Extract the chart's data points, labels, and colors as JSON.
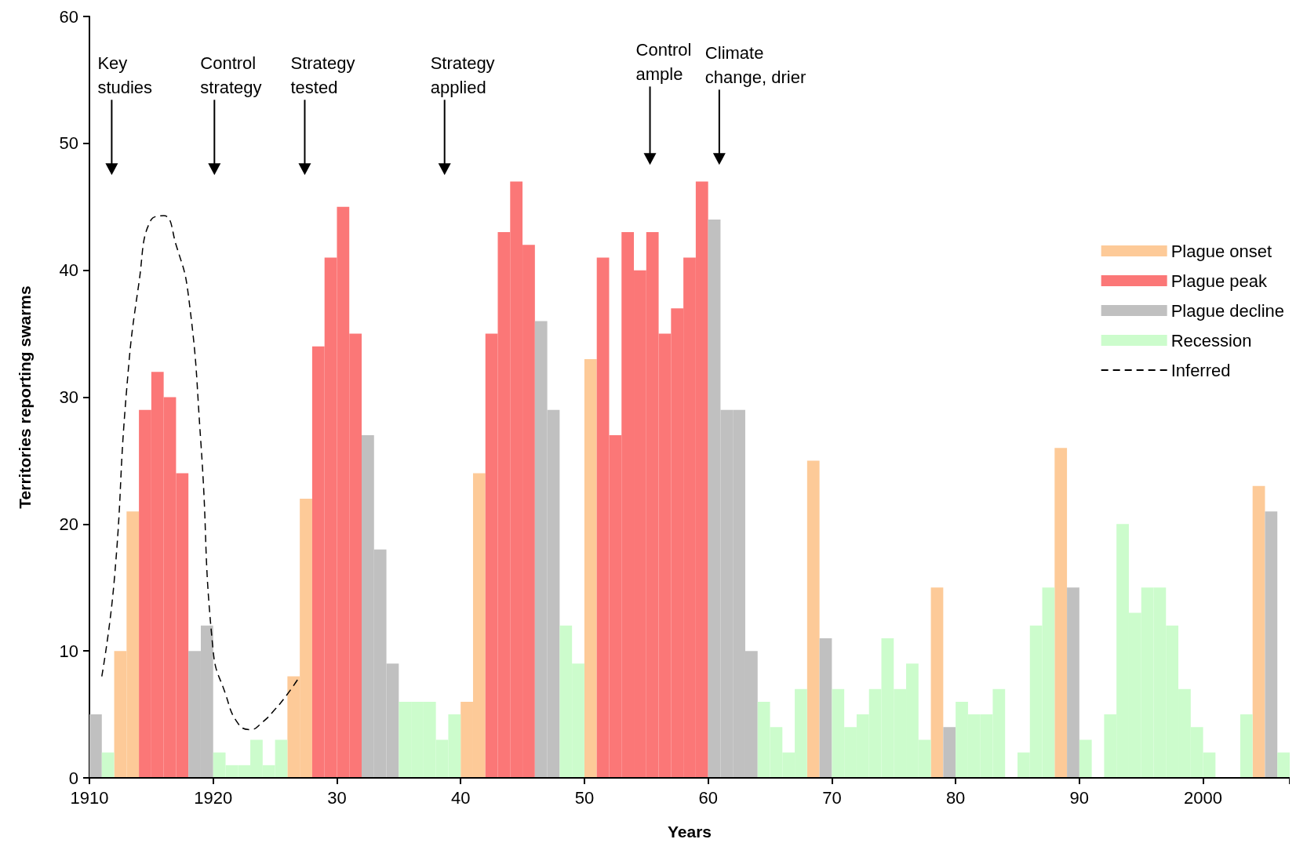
{
  "chart_data": {
    "type": "bar",
    "xlabel": "Years",
    "ylabel": "Territories reporting swarms",
    "categories": [
      "1910",
      null,
      null,
      null,
      null,
      null,
      null,
      null,
      null,
      null,
      "1920",
      null,
      null,
      null,
      null,
      null,
      null,
      null,
      null,
      null,
      "30",
      null,
      null,
      null,
      null,
      null,
      null,
      null,
      null,
      null,
      "40",
      null,
      null,
      null,
      null,
      null,
      null,
      null,
      null,
      null,
      "50",
      null,
      null,
      null,
      null,
      null,
      null,
      null,
      null,
      null,
      "60",
      null,
      null,
      null,
      null,
      null,
      null,
      null,
      null,
      null,
      "70",
      null,
      null,
      null,
      null,
      null,
      null,
      null,
      null,
      null,
      "80",
      null,
      null,
      null,
      null,
      null,
      null,
      null,
      null,
      null,
      "90",
      null,
      null,
      null,
      null,
      null,
      null,
      null,
      null,
      null,
      "2000",
      null,
      null,
      null,
      null,
      null,
      null
    ],
    "ylim": [
      0,
      60
    ],
    "yticks": [
      0,
      10,
      20,
      30,
      40,
      50,
      60
    ],
    "grid": false,
    "legend": "right",
    "series": [
      {
        "name": "Plague onset",
        "color": "#fdca98",
        "values": [
          null,
          null,
          10,
          21,
          null,
          null,
          null,
          null,
          null,
          null,
          null,
          null,
          null,
          null,
          null,
          null,
          8,
          22,
          null,
          null,
          null,
          null,
          null,
          null,
          null,
          null,
          null,
          null,
          null,
          null,
          6,
          24,
          null,
          null,
          null,
          null,
          null,
          null,
          null,
          null,
          33,
          null,
          null,
          null,
          null,
          null,
          null,
          null,
          null,
          null,
          null,
          null,
          null,
          null,
          null,
          null,
          null,
          null,
          25,
          null,
          null,
          null,
          null,
          null,
          null,
          null,
          null,
          null,
          15,
          null,
          null,
          null,
          null,
          null,
          null,
          null,
          null,
          null,
          26,
          null,
          null,
          null,
          null,
          null,
          null,
          null,
          null,
          null,
          null,
          null,
          null,
          null,
          null,
          null,
          23,
          null,
          null
        ]
      },
      {
        "name": "Plague peak",
        "color": "#fb7777",
        "values": [
          null,
          null,
          null,
          null,
          29,
          32,
          30,
          24,
          null,
          null,
          null,
          null,
          null,
          null,
          null,
          null,
          null,
          null,
          34,
          41,
          45,
          35,
          null,
          null,
          null,
          null,
          null,
          null,
          null,
          null,
          null,
          null,
          35,
          43,
          47,
          42,
          null,
          null,
          null,
          null,
          null,
          41,
          27,
          43,
          40,
          43,
          35,
          37,
          41,
          47,
          null,
          null,
          null,
          null,
          null,
          null,
          null,
          null,
          null,
          null,
          null,
          null,
          null,
          null,
          null,
          null,
          null,
          null,
          null,
          null,
          null,
          null,
          null,
          null,
          null,
          null,
          null,
          null,
          null,
          null,
          null,
          null,
          null,
          null,
          null,
          null,
          null,
          null,
          null,
          null,
          null,
          null,
          null,
          null,
          null,
          null,
          null
        ]
      },
      {
        "name": "Plague decline",
        "color": "#c0c0c0",
        "values": [
          5,
          null,
          null,
          null,
          null,
          null,
          null,
          null,
          10,
          12,
          null,
          null,
          null,
          null,
          null,
          null,
          null,
          null,
          null,
          null,
          null,
          null,
          27,
          18,
          9,
          null,
          null,
          null,
          null,
          null,
          null,
          null,
          null,
          null,
          null,
          null,
          36,
          29,
          null,
          null,
          null,
          null,
          null,
          null,
          null,
          null,
          null,
          null,
          null,
          null,
          44,
          29,
          29,
          10,
          null,
          null,
          null,
          null,
          null,
          11,
          null,
          null,
          null,
          null,
          null,
          null,
          null,
          null,
          null,
          4,
          null,
          null,
          null,
          null,
          null,
          null,
          null,
          null,
          null,
          15,
          null,
          null,
          null,
          null,
          null,
          null,
          null,
          null,
          null,
          null,
          null,
          null,
          null,
          null,
          null,
          21,
          null
        ]
      },
      {
        "name": "Recession",
        "color": "#ccfccc",
        "values": [
          null,
          2,
          null,
          null,
          null,
          null,
          null,
          null,
          null,
          null,
          2,
          1,
          1,
          3,
          1,
          3,
          null,
          null,
          null,
          null,
          null,
          null,
          null,
          null,
          null,
          6,
          6,
          6,
          3,
          5,
          null,
          null,
          null,
          null,
          null,
          null,
          null,
          null,
          12,
          9,
          null,
          null,
          null,
          null,
          null,
          null,
          null,
          null,
          null,
          null,
          null,
          null,
          null,
          null,
          6,
          4,
          2,
          7,
          null,
          null,
          7,
          4,
          5,
          7,
          11,
          7,
          9,
          3,
          null,
          null,
          6,
          5,
          5,
          7,
          null,
          2,
          12,
          15,
          null,
          null,
          3,
          null,
          5,
          20,
          13,
          15,
          15,
          12,
          7,
          4,
          2,
          null,
          null,
          5,
          null,
          null,
          2
        ]
      },
      {
        "name": "Inferred",
        "type": "line",
        "color": "#000000",
        "line_style": "dashed",
        "values": [
          null,
          8,
          15.5,
          30.5,
          39,
          44,
          44.3,
          42,
          38,
          26.5,
          10,
          6.6,
          4.3,
          3.8,
          4.4,
          5.4,
          6.6,
          8,
          null,
          null,
          null,
          null,
          null,
          null,
          null,
          null,
          null,
          null,
          null,
          null,
          null,
          null,
          null,
          null,
          null,
          null,
          null,
          null,
          null,
          null,
          null,
          null,
          null,
          null,
          null,
          null,
          null,
          null,
          null,
          null,
          null,
          null,
          null,
          null,
          null,
          null,
          null,
          null,
          null,
          null,
          null,
          null,
          null,
          null,
          null,
          null,
          null,
          null,
          null,
          null,
          null,
          null,
          null,
          null,
          null,
          null,
          null,
          null,
          null,
          null,
          null,
          null,
          null,
          null,
          null,
          null,
          null,
          null,
          null,
          null,
          null,
          null,
          null,
          null,
          null,
          null,
          null
        ]
      }
    ],
    "annotations": [
      "Key\nstudies",
      "Control\nstrategy",
      "Strategy\ntested",
      "Strategy\napplied",
      "Control\nample",
      "Climate\nchange, drier"
    ]
  }
}
